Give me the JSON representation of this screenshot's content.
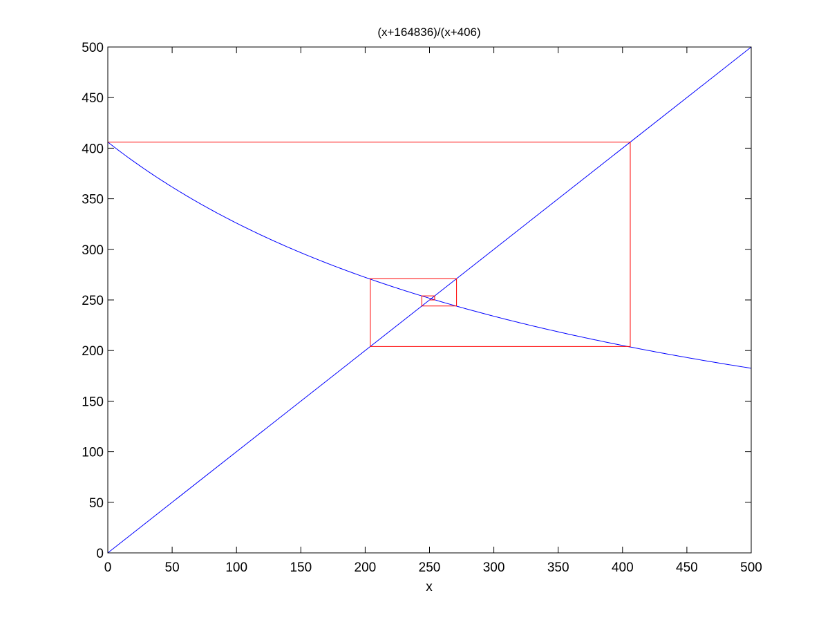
{
  "chart_data": {
    "type": "line",
    "title": "(x+164836)/(x+406)",
    "xlabel": "x",
    "ylabel": "",
    "xlim": [
      0,
      500
    ],
    "ylim": [
      0,
      500
    ],
    "xticks": [
      0,
      50,
      100,
      150,
      200,
      250,
      300,
      350,
      400,
      450,
      500
    ],
    "yticks": [
      0,
      50,
      100,
      150,
      200,
      250,
      300,
      350,
      400,
      450,
      500
    ],
    "grid": false,
    "legend": "none",
    "series": [
      {
        "function": "(x+164836)/(x+406)",
        "color": "#0000ff",
        "x": [
          0,
          25,
          50,
          75,
          100,
          125,
          150,
          175,
          200,
          225,
          250,
          275,
          300,
          325,
          350,
          375,
          400,
          425,
          450,
          475,
          500
        ],
        "y": [
          406.0,
          382.5,
          361.6,
          343.0,
          326.0,
          310.7,
          296.7,
          283.9,
          272.3,
          261.6,
          251.6,
          242.5,
          233.9,
          225.9,
          218.5,
          211.5,
          205.0,
          198.9,
          193.1,
          187.7,
          182.5
        ]
      },
      {
        "function": "y = x",
        "color": "#0000ff",
        "x": [
          0,
          500
        ],
        "y": [
          0,
          500
        ]
      },
      {
        "function": "cobweb",
        "color": "#ff0000",
        "x": [
          0,
          0,
          406,
          406,
          204,
          204,
          271,
          271,
          244,
          244,
          254,
          254,
          250
        ],
        "y": [
          0,
          406,
          406,
          204,
          204,
          271,
          271,
          244,
          244,
          254,
          254,
          250,
          250
        ]
      }
    ]
  }
}
